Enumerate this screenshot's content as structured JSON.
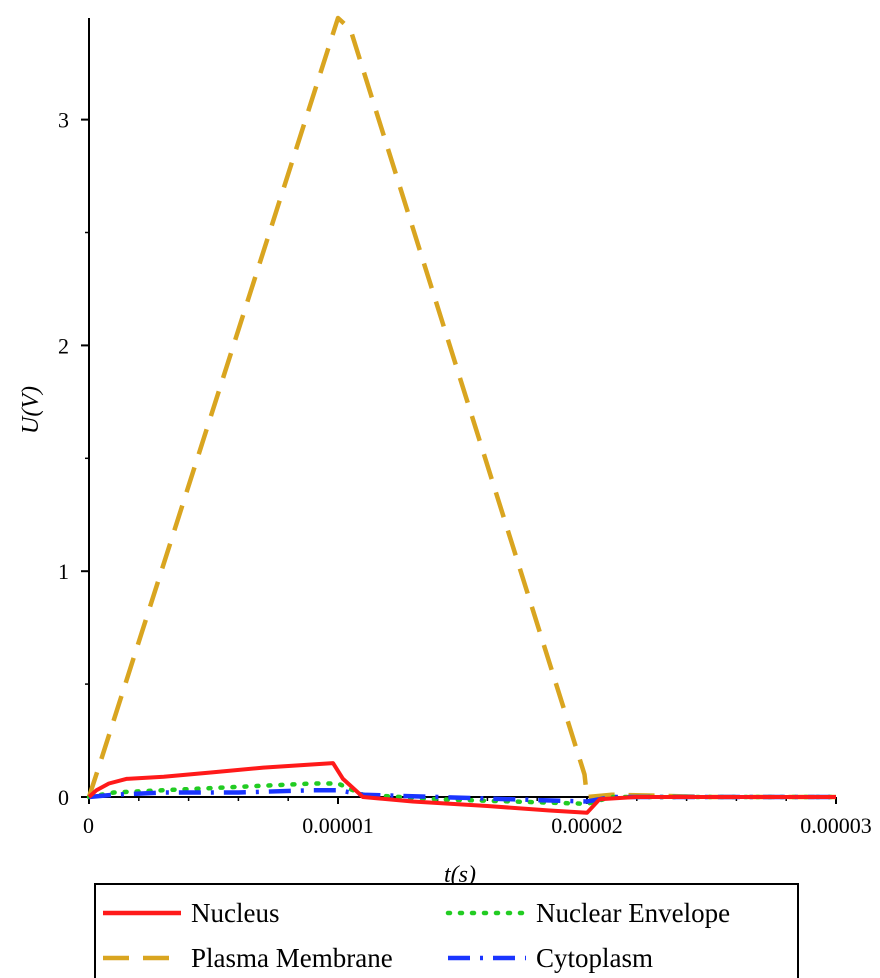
{
  "chart_data": {
    "type": "line",
    "xlabel": "t(s)",
    "ylabel": "U(V)",
    "xlim": [
      0,
      3e-05
    ],
    "ylim": [
      0,
      3.45
    ],
    "x_ticks": [
      "0",
      "0.00001",
      "0.00002",
      "0.00003"
    ],
    "y_ticks": [
      "0",
      "1",
      "2",
      "3"
    ],
    "grid": false,
    "legend_position": "bottom",
    "series": [
      {
        "name": "Nucleus",
        "color": "#ff1a1a",
        "style": "solid",
        "x": [
          0,
          3e-07,
          8e-07,
          1.5e-06,
          3e-06,
          5e-06,
          7e-06,
          9.8e-06,
          1.02e-05,
          1.1e-05,
          1.3e-05,
          1.6e-05,
          1.85e-05,
          2e-05,
          2.05e-05,
          2.2e-05,
          2.5e-05,
          3e-05
        ],
        "y": [
          0,
          0.03,
          0.06,
          0.08,
          0.09,
          0.11,
          0.13,
          0.15,
          0.08,
          0.0,
          -0.02,
          -0.04,
          -0.06,
          -0.07,
          -0.01,
          0.0,
          0.0,
          0.0
        ]
      },
      {
        "name": "Nuclear Envelope",
        "color": "#22cc22",
        "style": "dotted",
        "x": [
          0,
          1e-06,
          3e-06,
          5e-06,
          7e-06,
          9e-06,
          1e-05,
          1.1e-05,
          1.4e-05,
          1.7e-05,
          2e-05,
          2.1e-05,
          2.5e-05,
          3e-05
        ],
        "y": [
          0,
          0.02,
          0.03,
          0.04,
          0.05,
          0.06,
          0.06,
          0.01,
          -0.01,
          -0.02,
          -0.03,
          0.0,
          0.0,
          0.0
        ]
      },
      {
        "name": "Plasma Membrane",
        "color": "#d9a520",
        "style": "dashed",
        "x": [
          0,
          5e-07,
          1e-05,
          1.05e-05,
          1.99e-05,
          2e-05,
          2.1e-05,
          2.5e-05,
          3e-05
        ],
        "y": [
          0,
          0.17,
          3.45,
          3.4,
          0.1,
          0.0,
          0.01,
          0.0,
          0.0
        ]
      },
      {
        "name": "Cytoplasm",
        "color": "#1a35ff",
        "style": "dashdot",
        "x": [
          0,
          1e-06,
          3e-06,
          6e-06,
          9e-06,
          1e-05,
          1.1e-05,
          1.4e-05,
          1.7e-05,
          2e-05,
          2.1e-05,
          2.5e-05,
          3e-05
        ],
        "y": [
          0,
          0.01,
          0.02,
          0.02,
          0.03,
          0.03,
          0.01,
          0.0,
          -0.01,
          -0.02,
          0.0,
          0.0,
          0.0
        ]
      }
    ]
  }
}
